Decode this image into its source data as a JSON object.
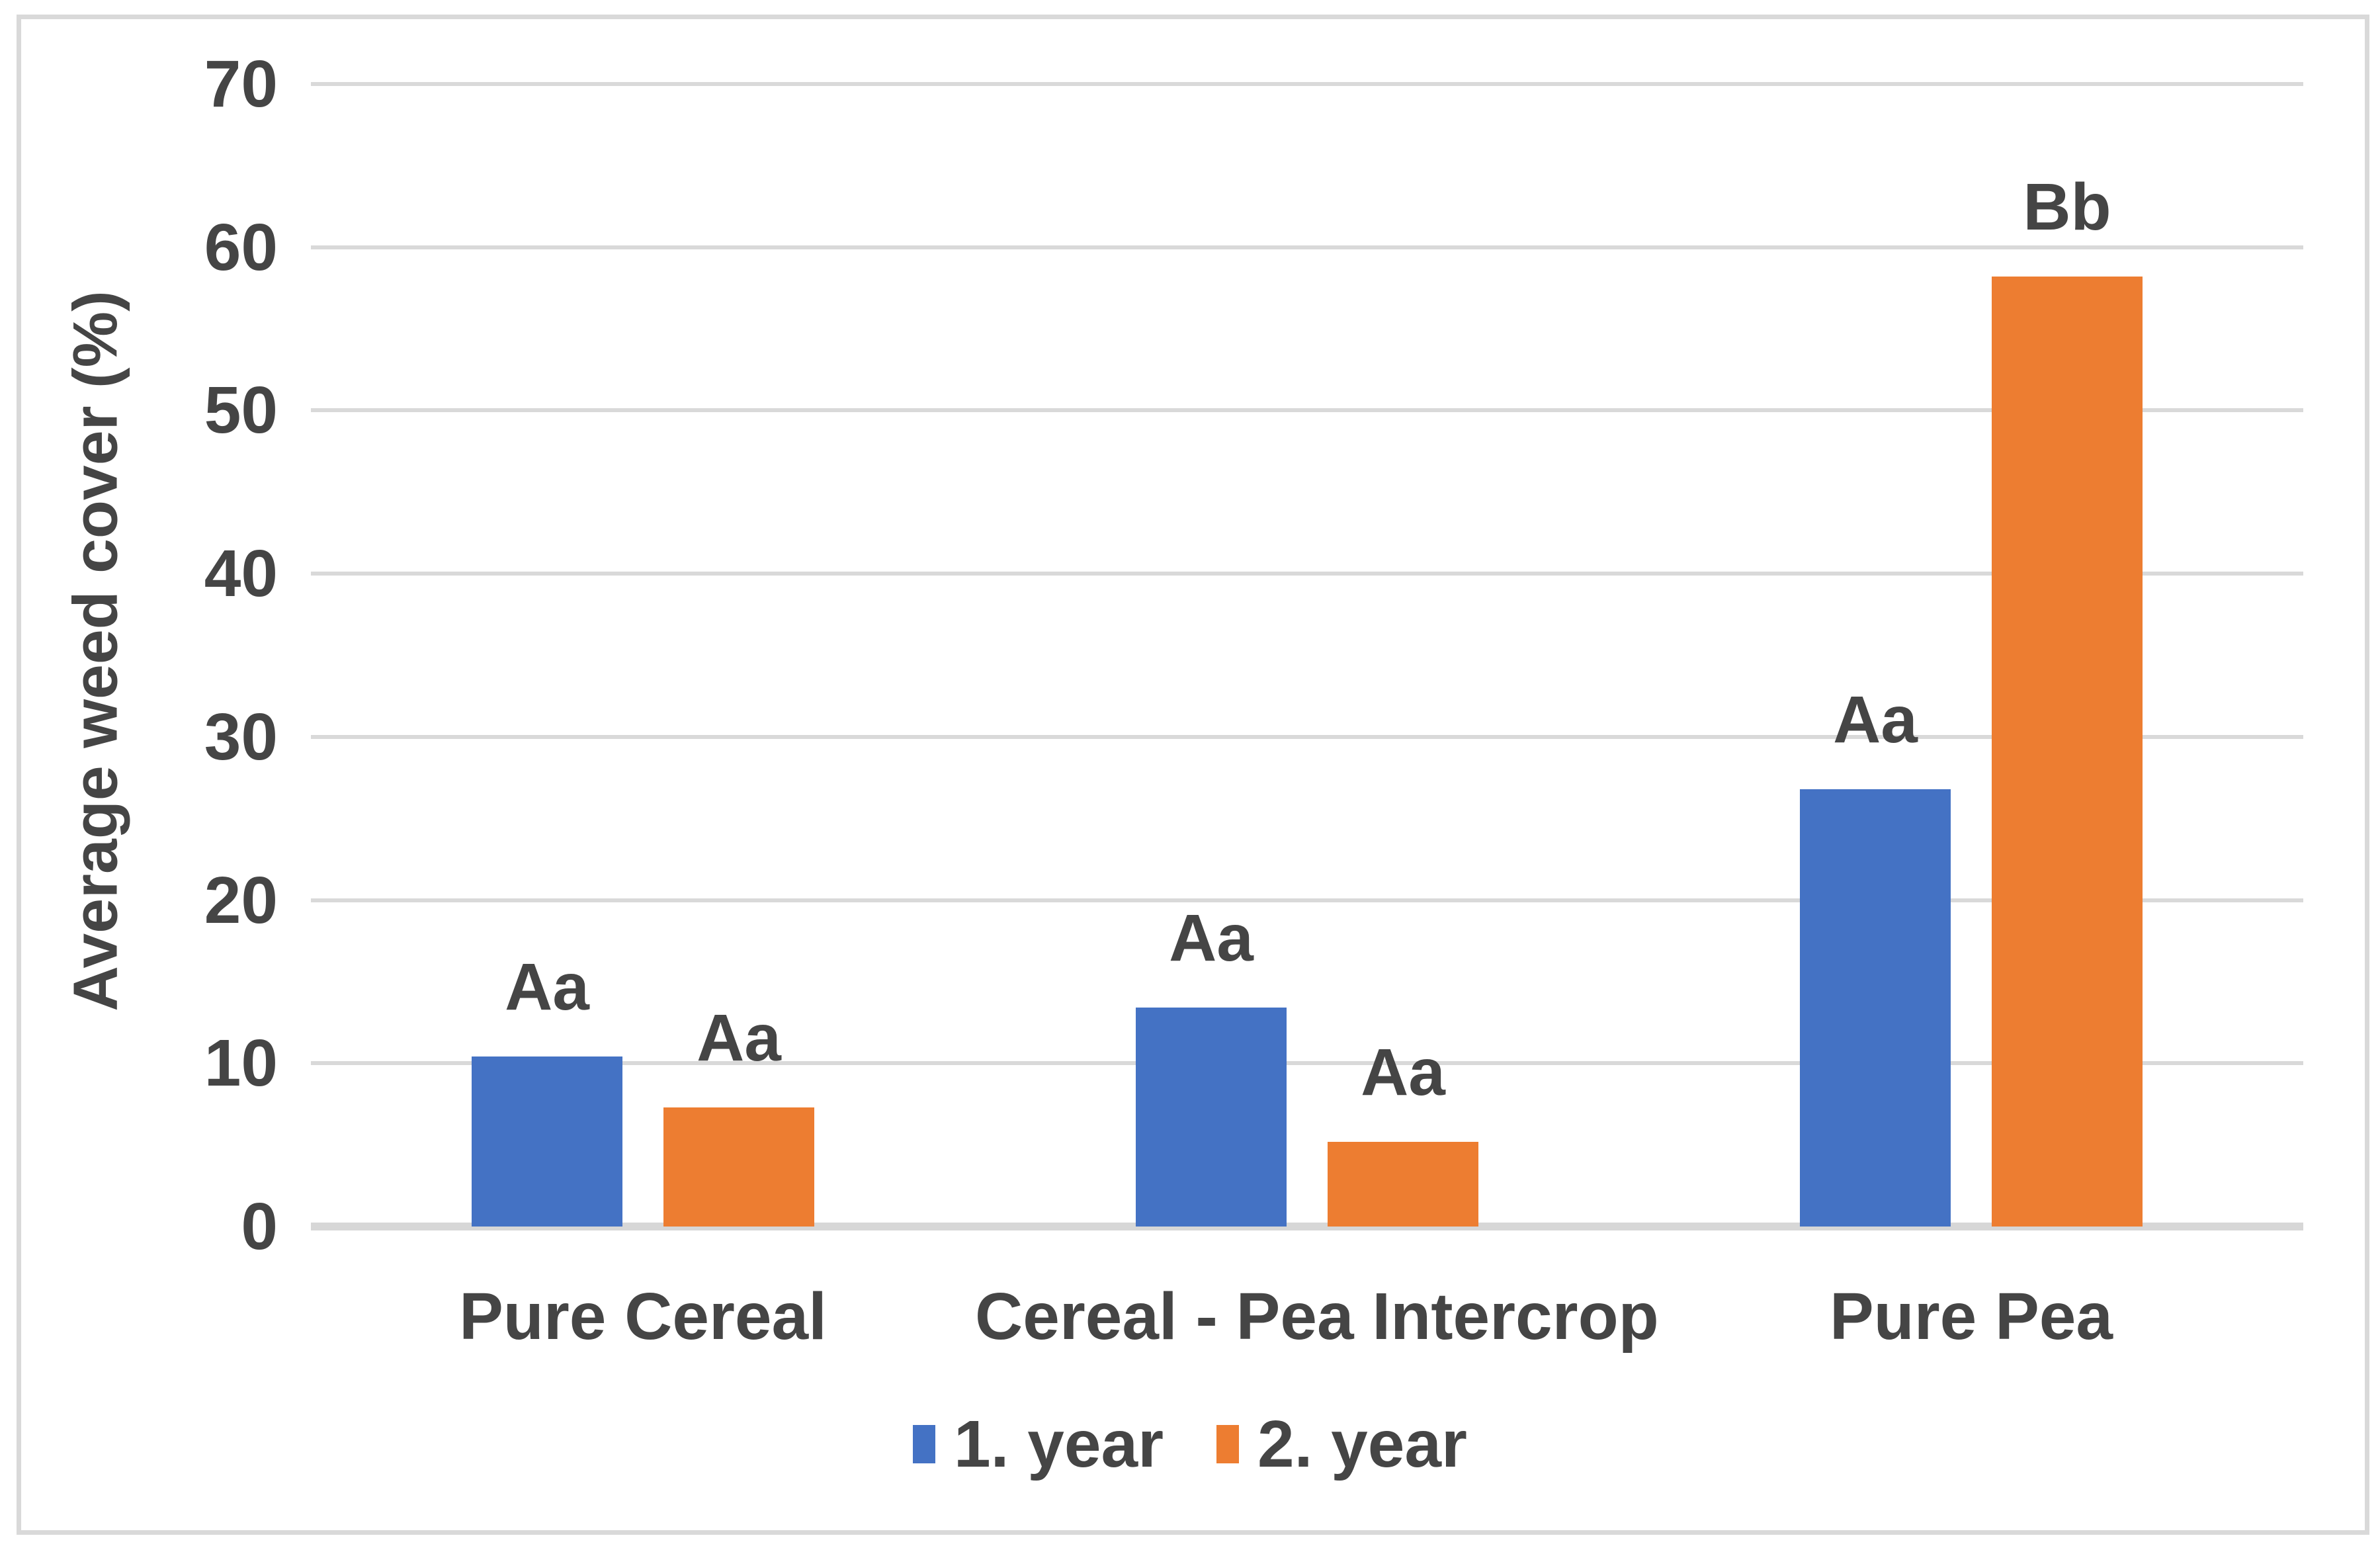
{
  "chart_data": {
    "type": "bar",
    "title": "",
    "ylabel": "Average weed cover (%)",
    "xlabel": "",
    "categories": [
      "Pure Cereal",
      "Cereal - Pea Intercrop",
      "Pure Pea"
    ],
    "series": [
      {
        "name": "1. year",
        "color": "#4472C4",
        "values": [
          10.4,
          13.4,
          26.8
        ],
        "bar_labels": [
          "Aa",
          "Aa",
          "Aa"
        ]
      },
      {
        "name": "2. year",
        "color": "#ED7D31",
        "values": [
          7.3,
          5.2,
          58.2
        ],
        "bar_labels": [
          "Aa",
          "Aa",
          "Bb"
        ]
      }
    ],
    "ylim": [
      0,
      70
    ],
    "yticks": [
      0,
      10,
      20,
      30,
      40,
      50,
      60,
      70
    ],
    "grid": true,
    "gridline_color": "#D9D9D9",
    "axis_text_color": "#454545",
    "frame_border_color": "#D9D9D9",
    "legend_position": "bottom-center"
  }
}
